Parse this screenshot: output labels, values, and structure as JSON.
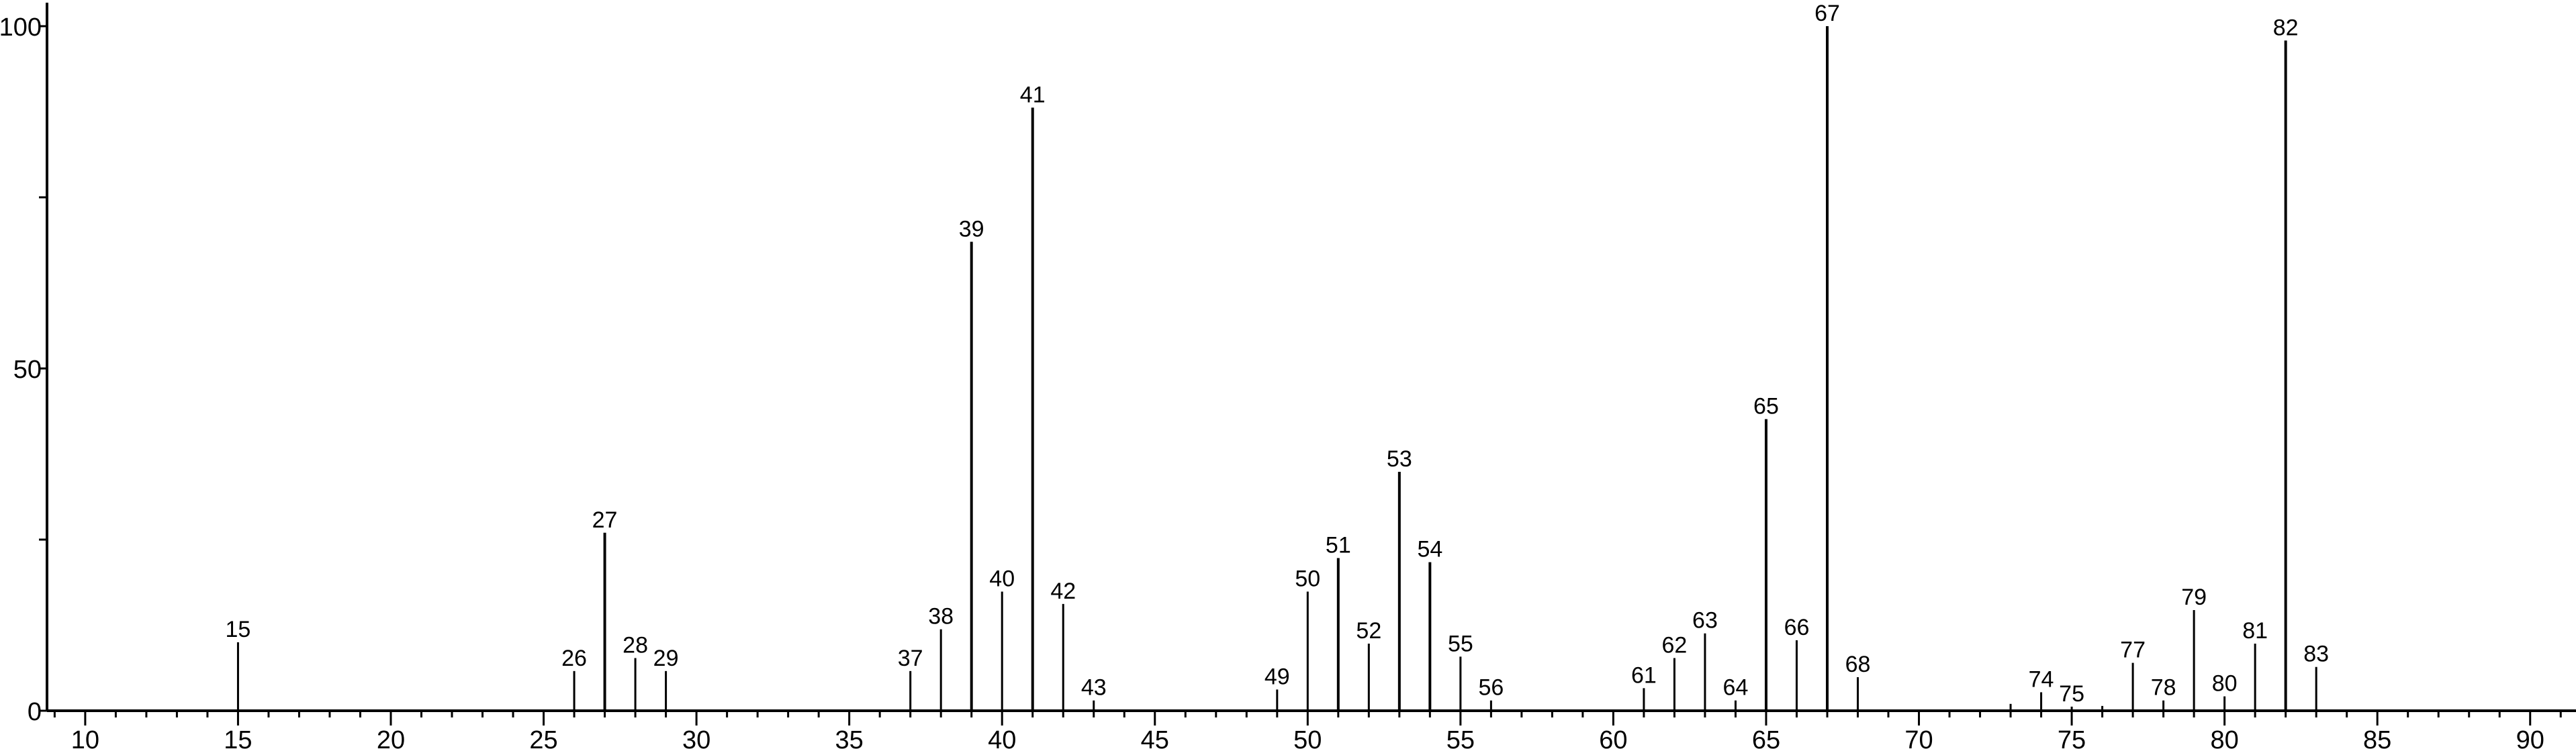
{
  "chart_data": {
    "type": "bar",
    "subtype": "stick-spectrum",
    "title": "",
    "xlabel": "",
    "ylabel": "",
    "xlim": [
      8.75,
      91.5
    ],
    "ylim": [
      0,
      100
    ],
    "x_major_ticks": [
      10,
      15,
      20,
      25,
      30,
      35,
      40,
      45,
      50,
      55,
      60,
      65,
      70,
      75,
      80,
      85,
      90
    ],
    "x_minor_step": 1,
    "y_ticks": [
      0,
      25,
      50,
      75,
      100
    ],
    "y_tick_labels": [
      0,
      50,
      100
    ],
    "grid": false,
    "legend": "none",
    "color": "#000000",
    "peaks": [
      {
        "x": 15,
        "y": 10.0,
        "label": "15"
      },
      {
        "x": 26,
        "y": 5.8,
        "label": "26"
      },
      {
        "x": 27,
        "y": 26.0,
        "label": "27"
      },
      {
        "x": 28,
        "y": 7.7,
        "label": "28"
      },
      {
        "x": 29,
        "y": 5.8,
        "label": "29"
      },
      {
        "x": 37,
        "y": 5.8,
        "label": "37"
      },
      {
        "x": 38,
        "y": 11.9,
        "label": "38"
      },
      {
        "x": 39,
        "y": 68.5,
        "label": "39"
      },
      {
        "x": 40,
        "y": 17.4,
        "label": "40"
      },
      {
        "x": 41,
        "y": 88.1,
        "label": "41"
      },
      {
        "x": 42,
        "y": 15.6,
        "label": "42"
      },
      {
        "x": 43,
        "y": 1.5,
        "label": "43"
      },
      {
        "x": 49,
        "y": 3.1,
        "label": "49"
      },
      {
        "x": 50,
        "y": 17.4,
        "label": "50"
      },
      {
        "x": 51,
        "y": 22.3,
        "label": "51"
      },
      {
        "x": 52,
        "y": 9.8,
        "label": "52"
      },
      {
        "x": 53,
        "y": 34.9,
        "label": "53"
      },
      {
        "x": 54,
        "y": 21.7,
        "label": "54"
      },
      {
        "x": 55,
        "y": 7.9,
        "label": "55"
      },
      {
        "x": 56,
        "y": 1.5,
        "label": "56"
      },
      {
        "x": 61,
        "y": 3.3,
        "label": "61"
      },
      {
        "x": 62,
        "y": 7.7,
        "label": "62"
      },
      {
        "x": 63,
        "y": 11.3,
        "label": "63"
      },
      {
        "x": 64,
        "y": 1.5,
        "label": "64"
      },
      {
        "x": 65,
        "y": 42.6,
        "label": "65"
      },
      {
        "x": 66,
        "y": 10.3,
        "label": "66"
      },
      {
        "x": 67,
        "y": 100,
        "label": "67"
      },
      {
        "x": 68,
        "y": 4.9,
        "label": "68"
      },
      {
        "x": 73,
        "y": 1.0,
        "label": ""
      },
      {
        "x": 74,
        "y": 2.7,
        "label": "74"
      },
      {
        "x": 75,
        "y": 0.6,
        "label": "75"
      },
      {
        "x": 76,
        "y": 0.7,
        "label": ""
      },
      {
        "x": 77,
        "y": 7.0,
        "label": "77"
      },
      {
        "x": 78,
        "y": 1.5,
        "label": "78"
      },
      {
        "x": 79,
        "y": 14.7,
        "label": "79"
      },
      {
        "x": 80,
        "y": 2.1,
        "label": "80"
      },
      {
        "x": 81,
        "y": 9.8,
        "label": "81"
      },
      {
        "x": 82,
        "y": 97.9,
        "label": "82"
      },
      {
        "x": 83,
        "y": 6.4,
        "label": "83"
      }
    ]
  }
}
